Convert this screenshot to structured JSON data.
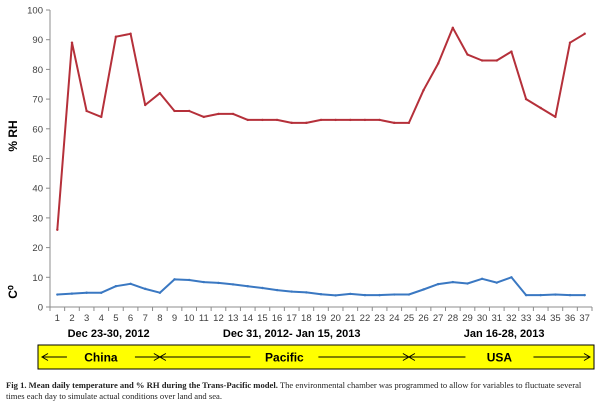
{
  "chart_data": {
    "type": "line",
    "ylabel_top": "% RH",
    "ylabel_bottom": "C⁰",
    "ylim": [
      0,
      100
    ],
    "yticks": [
      0,
      10,
      20,
      30,
      40,
      50,
      60,
      70,
      80,
      90,
      100
    ],
    "grid": false,
    "x": [
      1,
      2,
      3,
      4,
      5,
      6,
      7,
      8,
      9,
      10,
      11,
      12,
      13,
      14,
      15,
      16,
      17,
      18,
      19,
      20,
      21,
      22,
      23,
      24,
      25,
      26,
      27,
      28,
      29,
      30,
      31,
      32,
      33,
      34,
      35,
      36,
      37
    ],
    "series": [
      {
        "color": "#b5303a",
        "values": [
          26,
          89,
          66,
          64,
          91,
          92,
          68,
          72,
          66,
          66,
          64,
          65,
          65,
          63,
          63,
          63,
          62,
          62,
          63,
          63,
          63,
          63,
          63,
          62,
          62,
          73,
          82,
          94,
          85,
          83,
          83,
          86,
          70,
          67,
          64,
          89,
          92
        ]
      },
      {
        "color": "#3a78c2",
        "values": [
          4.2,
          4.5,
          4.8,
          4.8,
          7,
          7.8,
          6.1,
          4.8,
          9.3,
          9.1,
          8.4,
          8.1,
          7.6,
          7,
          6.4,
          5.7,
          5.2,
          4.9,
          4.3,
          3.9,
          4.4,
          4,
          4,
          4.2,
          4.2,
          5.9,
          7.7,
          8.4,
          7.9,
          9.5,
          8.2,
          10,
          4,
          4,
          4.2,
          4,
          4
        ]
      }
    ],
    "periods": [
      {
        "label": "Dec 23-30, 2012",
        "from": 1,
        "to": 8
      },
      {
        "label": "Dec 31, 2012- Jan 15, 2013",
        "from": 9,
        "to": 25
      },
      {
        "label": "Jan 16-28, 2013",
        "from": 26,
        "to": 37
      }
    ],
    "regions": [
      {
        "label": "China",
        "from": 1,
        "to": 8
      },
      {
        "label": "Pacific",
        "from": 8,
        "to": 25
      },
      {
        "label": "USA",
        "from": 25,
        "to": 37
      }
    ],
    "region_bar_color": "#ffff00"
  },
  "caption": {
    "lead": "Fig 1. Mean daily temperature and % RH during the Trans-Pacific model.",
    "text": " The environmental chamber was programmed to allow for variables to fluctuate several times each day to simulate actual conditions over land and sea."
  }
}
